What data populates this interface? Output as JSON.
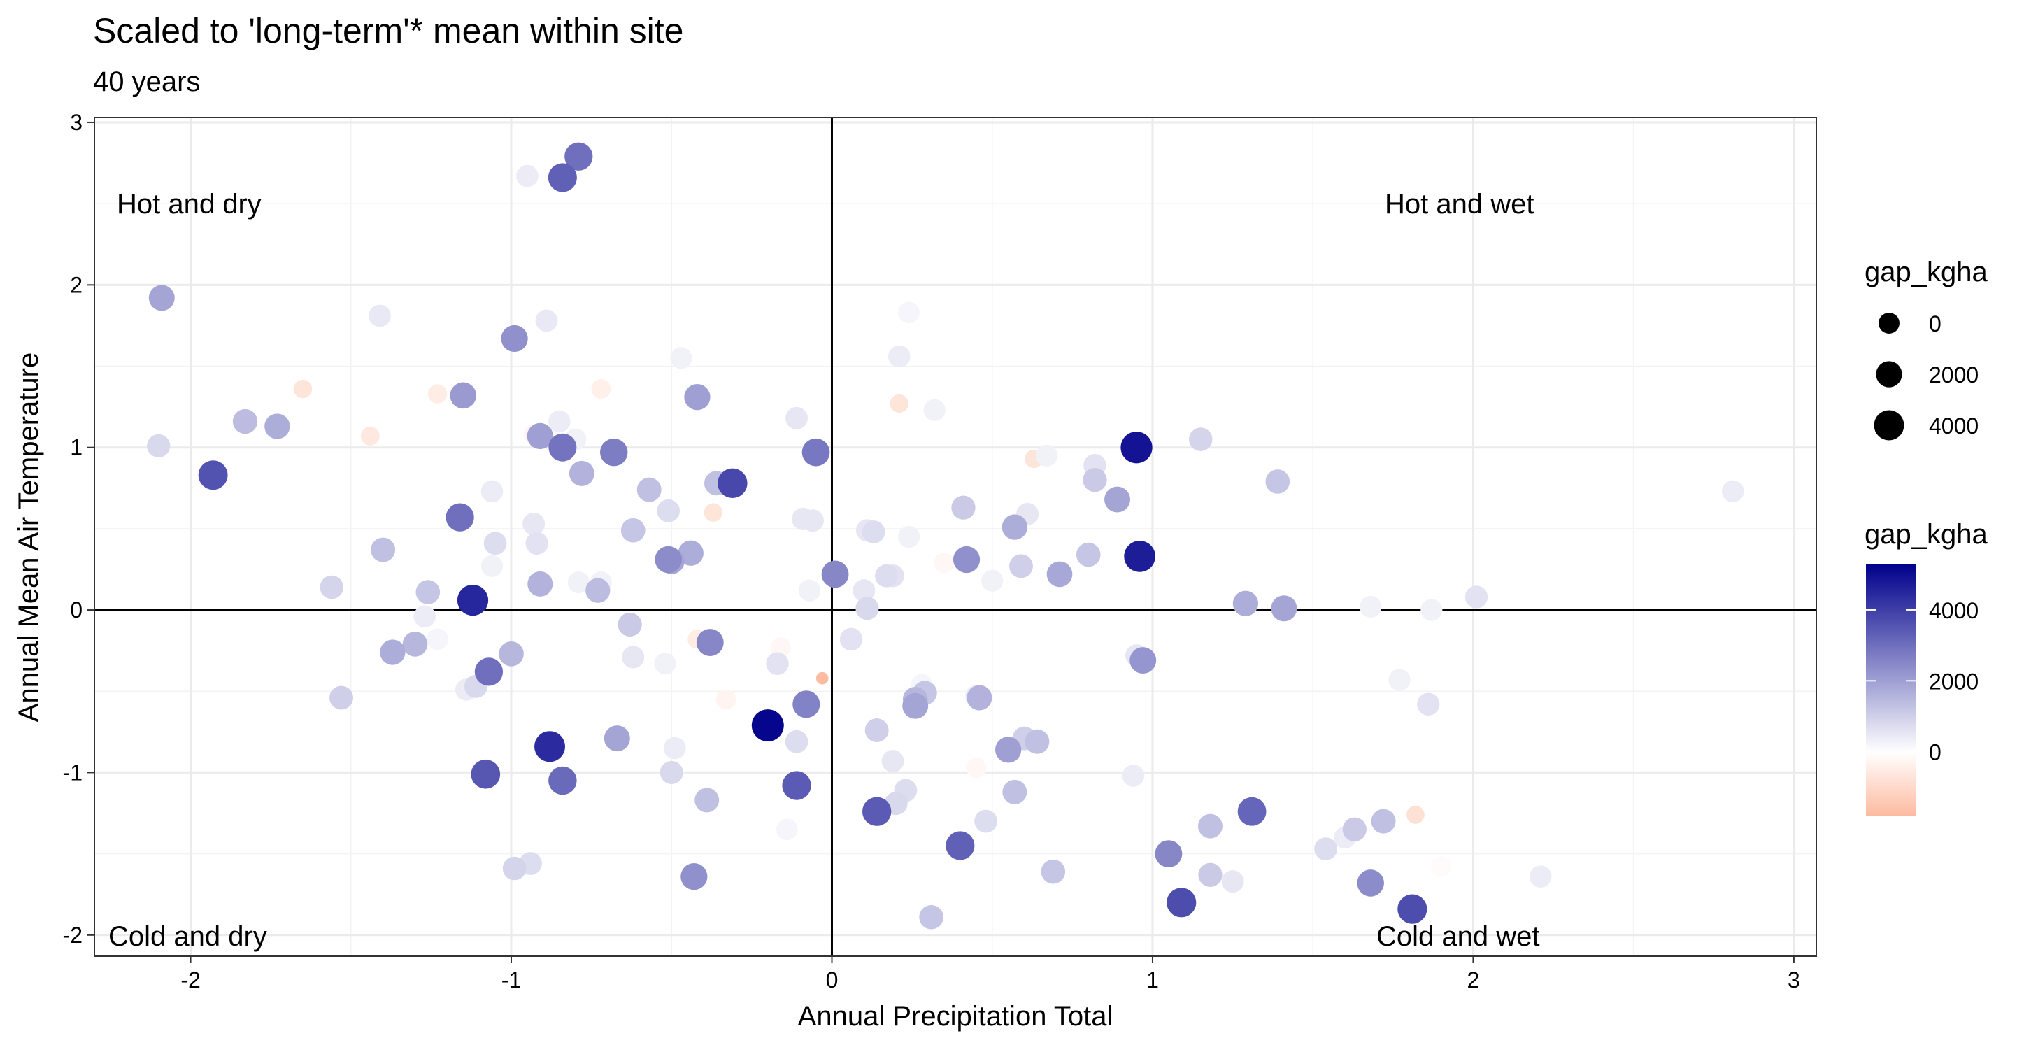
{
  "chart_data": {
    "type": "scatter",
    "title": "Scaled to 'long-term'* mean within site",
    "subtitle": "40 years",
    "xlabel": "Annual Precipitation Total",
    "ylabel": "Annual Mean Air Temperature",
    "xlim": [
      -2.3,
      3.07
    ],
    "ylim": [
      -2.13,
      3.03
    ],
    "x_ticks": [
      -2,
      -1,
      0,
      1,
      2,
      3
    ],
    "y_ticks": [
      -2,
      -1,
      0,
      1,
      2,
      3
    ],
    "x_tick_labels": [
      "-2",
      "-1",
      "0",
      "1",
      "2",
      "3"
    ],
    "y_tick_labels": [
      "-2",
      "-1",
      "0",
      "1",
      "2",
      "3"
    ],
    "grid": true,
    "reference_lines": {
      "x": 0,
      "y": 0
    },
    "quadrant_labels": {
      "top_left": "Hot and dry",
      "top_right": "Hot and wet",
      "bottom_left": "Cold and dry",
      "bottom_right": "Cold and wet"
    },
    "size_legend": {
      "title": "gap_kgha",
      "entries": [
        {
          "label": "0",
          "value": 0
        },
        {
          "label": "2000",
          "value": 2000
        },
        {
          "label": "4000",
          "value": 4000
        }
      ]
    },
    "color_legend": {
      "title": "gap_kgha",
      "range": [
        -1800,
        5300
      ],
      "tick_values": [
        0,
        2000,
        4000
      ],
      "tick_labels": [
        "0",
        "2000",
        "4000"
      ],
      "low_color": "#FDBBA1",
      "mid_color": "#FFFFFF",
      "high_color": "#00008B"
    },
    "series": [
      {
        "points": [
          {
            "x": -0.79,
            "y": 2.79,
            "gap": 3000
          },
          {
            "x": -0.84,
            "y": 2.66,
            "gap": 3300
          },
          {
            "x": -0.95,
            "y": 2.67,
            "gap": 400
          },
          {
            "x": -2.09,
            "y": 1.92,
            "gap": 1900
          },
          {
            "x": -1.41,
            "y": 1.81,
            "gap": 450
          },
          {
            "x": -0.99,
            "y": 1.67,
            "gap": 2300
          },
          {
            "x": -0.89,
            "y": 1.78,
            "gap": 450
          },
          {
            "x": -1.65,
            "y": 1.36,
            "gap": -700
          },
          {
            "x": -1.23,
            "y": 1.33,
            "gap": -500
          },
          {
            "x": -1.15,
            "y": 1.32,
            "gap": 2100
          },
          {
            "x": -0.72,
            "y": 1.36,
            "gap": -400
          },
          {
            "x": -1.83,
            "y": 1.16,
            "gap": 1400
          },
          {
            "x": -1.73,
            "y": 1.13,
            "gap": 1700
          },
          {
            "x": -1.44,
            "y": 1.07,
            "gap": -600
          },
          {
            "x": -0.93,
            "y": 1.08,
            "gap": -300
          },
          {
            "x": -0.91,
            "y": 1.07,
            "gap": 2000
          },
          {
            "x": -0.85,
            "y": 1.16,
            "gap": 400
          },
          {
            "x": -0.8,
            "y": 1.05,
            "gap": 300
          },
          {
            "x": -2.1,
            "y": 1.01,
            "gap": 800
          },
          {
            "x": -1.93,
            "y": 0.83,
            "gap": 3600
          },
          {
            "x": -0.84,
            "y": 1.0,
            "gap": 2900
          },
          {
            "x": -0.68,
            "y": 0.97,
            "gap": 2700
          },
          {
            "x": -0.78,
            "y": 0.84,
            "gap": 1600
          },
          {
            "x": -1.06,
            "y": 0.73,
            "gap": 400
          },
          {
            "x": -0.57,
            "y": 0.74,
            "gap": 1300
          },
          {
            "x": -0.51,
            "y": 0.61,
            "gap": 700
          },
          {
            "x": -0.36,
            "y": 0.78,
            "gap": 1300
          },
          {
            "x": -0.31,
            "y": 0.78,
            "gap": 3800
          },
          {
            "x": -0.37,
            "y": 0.6,
            "gap": -700
          },
          {
            "x": -1.16,
            "y": 0.57,
            "gap": 3000
          },
          {
            "x": -0.93,
            "y": 0.53,
            "gap": 500
          },
          {
            "x": -1.05,
            "y": 0.41,
            "gap": 700
          },
          {
            "x": -0.92,
            "y": 0.41,
            "gap": 600
          },
          {
            "x": -1.4,
            "y": 0.37,
            "gap": 1300
          },
          {
            "x": -1.06,
            "y": 0.27,
            "gap": 300
          },
          {
            "x": -0.62,
            "y": 0.49,
            "gap": 1200
          },
          {
            "x": -0.51,
            "y": 0.31,
            "gap": 2400
          },
          {
            "x": -0.44,
            "y": 0.35,
            "gap": 1700
          },
          {
            "x": -0.5,
            "y": 0.3,
            "gap": 1900
          },
          {
            "x": -0.47,
            "y": 1.55,
            "gap": 300
          },
          {
            "x": -0.42,
            "y": 1.31,
            "gap": 2000
          },
          {
            "x": -0.11,
            "y": 1.18,
            "gap": 500
          },
          {
            "x": -0.05,
            "y": 0.97,
            "gap": 2800
          },
          {
            "x": -0.09,
            "y": 0.56,
            "gap": 500
          },
          {
            "x": -0.06,
            "y": 0.55,
            "gap": 500
          },
          {
            "x": -1.56,
            "y": 0.14,
            "gap": 900
          },
          {
            "x": -1.26,
            "y": 0.11,
            "gap": 1200
          },
          {
            "x": -1.12,
            "y": 0.06,
            "gap": 4500
          },
          {
            "x": -0.91,
            "y": 0.16,
            "gap": 1600
          },
          {
            "x": -0.79,
            "y": 0.17,
            "gap": 300
          },
          {
            "x": -0.73,
            "y": 0.12,
            "gap": 1400
          },
          {
            "x": -0.72,
            "y": 0.17,
            "gap": 300
          },
          {
            "x": 0.01,
            "y": 0.22,
            "gap": 2500
          },
          {
            "x": -0.07,
            "y": 0.12,
            "gap": 300
          },
          {
            "x": -1.37,
            "y": -0.26,
            "gap": 1700
          },
          {
            "x": -1.3,
            "y": -0.21,
            "gap": 1500
          },
          {
            "x": -1.27,
            "y": -0.04,
            "gap": 400
          },
          {
            "x": -1.23,
            "y": -0.18,
            "gap": 200
          },
          {
            "x": -1.07,
            "y": -0.38,
            "gap": 3000
          },
          {
            "x": -1.0,
            "y": -0.27,
            "gap": 1500
          },
          {
            "x": -1.11,
            "y": -0.47,
            "gap": 800
          },
          {
            "x": -1.14,
            "y": -0.49,
            "gap": 400
          },
          {
            "x": -1.53,
            "y": -0.54,
            "gap": 1000
          },
          {
            "x": -0.63,
            "y": -0.09,
            "gap": 1100
          },
          {
            "x": -0.62,
            "y": -0.29,
            "gap": 500
          },
          {
            "x": -0.52,
            "y": -0.33,
            "gap": 300
          },
          {
            "x": -0.42,
            "y": -0.18,
            "gap": -500
          },
          {
            "x": -0.38,
            "y": -0.2,
            "gap": 2500
          },
          {
            "x": -0.16,
            "y": -0.23,
            "gap": -200
          },
          {
            "x": -0.17,
            "y": -0.33,
            "gap": 600
          },
          {
            "x": -0.03,
            "y": -0.42,
            "gap": -1800
          },
          {
            "x": -0.33,
            "y": -0.55,
            "gap": -300
          },
          {
            "x": -0.2,
            "y": -0.71,
            "gap": 5200
          },
          {
            "x": -0.08,
            "y": -0.58,
            "gap": 2600
          },
          {
            "x": -0.11,
            "y": -0.81,
            "gap": 700
          },
          {
            "x": -0.11,
            "y": -1.08,
            "gap": 3400
          },
          {
            "x": 0.06,
            "y": -0.18,
            "gap": 600
          },
          {
            "x": -0.88,
            "y": -0.84,
            "gap": 4400
          },
          {
            "x": -1.08,
            "y": -1.01,
            "gap": 3500
          },
          {
            "x": -0.84,
            "y": -1.05,
            "gap": 3100
          },
          {
            "x": -0.67,
            "y": -0.79,
            "gap": 1900
          },
          {
            "x": -0.49,
            "y": -0.85,
            "gap": 400
          },
          {
            "x": -0.5,
            "y": -1.0,
            "gap": 800
          },
          {
            "x": -0.39,
            "y": -1.17,
            "gap": 1300
          },
          {
            "x": -0.14,
            "y": -1.35,
            "gap": 200
          },
          {
            "x": -0.99,
            "y": -1.59,
            "gap": 900
          },
          {
            "x": -0.94,
            "y": -1.56,
            "gap": 700
          },
          {
            "x": -0.43,
            "y": -1.64,
            "gap": 2300
          },
          {
            "x": 0.11,
            "y": 0.49,
            "gap": 500
          },
          {
            "x": 0.13,
            "y": 0.48,
            "gap": 700
          },
          {
            "x": 0.24,
            "y": 0.45,
            "gap": 300
          },
          {
            "x": 0.32,
            "y": 1.23,
            "gap": 300
          },
          {
            "x": 0.21,
            "y": 1.56,
            "gap": 400
          },
          {
            "x": 0.24,
            "y": 1.83,
            "gap": 200
          },
          {
            "x": 0.21,
            "y": 1.27,
            "gap": -700
          },
          {
            "x": 0.1,
            "y": 0.12,
            "gap": 500
          },
          {
            "x": 0.11,
            "y": 0.01,
            "gap": 800
          },
          {
            "x": 0.17,
            "y": 0.21,
            "gap": 700
          },
          {
            "x": 0.19,
            "y": 0.21,
            "gap": 600
          },
          {
            "x": 0.35,
            "y": 0.29,
            "gap": -200
          },
          {
            "x": 0.42,
            "y": 0.31,
            "gap": 2300
          },
          {
            "x": 0.41,
            "y": 0.63,
            "gap": 1100
          },
          {
            "x": 0.5,
            "y": 0.18,
            "gap": 300
          },
          {
            "x": 0.59,
            "y": 0.27,
            "gap": 1000
          },
          {
            "x": 0.57,
            "y": 0.51,
            "gap": 1700
          },
          {
            "x": 0.61,
            "y": 0.59,
            "gap": 500
          },
          {
            "x": 0.63,
            "y": 0.93,
            "gap": -700
          },
          {
            "x": 0.67,
            "y": 0.95,
            "gap": 300
          },
          {
            "x": 0.71,
            "y": 0.22,
            "gap": 1800
          },
          {
            "x": 0.8,
            "y": 0.34,
            "gap": 1200
          },
          {
            "x": 0.82,
            "y": 0.8,
            "gap": 1100
          },
          {
            "x": 0.82,
            "y": 0.89,
            "gap": 600
          },
          {
            "x": 0.89,
            "y": 0.68,
            "gap": 1900
          },
          {
            "x": 0.95,
            "y": 1.0,
            "gap": 4900
          },
          {
            "x": 0.96,
            "y": 0.33,
            "gap": 4700
          },
          {
            "x": 1.15,
            "y": 1.05,
            "gap": 900
          },
          {
            "x": 1.39,
            "y": 0.79,
            "gap": 1200
          },
          {
            "x": 1.29,
            "y": 0.04,
            "gap": 1700
          },
          {
            "x": 1.41,
            "y": 0.01,
            "gap": 1900
          },
          {
            "x": 0.97,
            "y": -0.31,
            "gap": 2200
          },
          {
            "x": 0.95,
            "y": -0.28,
            "gap": 500
          },
          {
            "x": 1.68,
            "y": 0.02,
            "gap": 300
          },
          {
            "x": 1.87,
            "y": 0.0,
            "gap": 300
          },
          {
            "x": 2.01,
            "y": 0.08,
            "gap": 600
          },
          {
            "x": 2.81,
            "y": 0.73,
            "gap": 400
          },
          {
            "x": 0.14,
            "y": -0.74,
            "gap": 1000
          },
          {
            "x": 0.19,
            "y": -0.93,
            "gap": 500
          },
          {
            "x": 0.26,
            "y": -0.55,
            "gap": 1500
          },
          {
            "x": 0.26,
            "y": -0.59,
            "gap": 1900
          },
          {
            "x": 0.28,
            "y": -0.46,
            "gap": 200
          },
          {
            "x": 0.29,
            "y": -0.51,
            "gap": 1200
          },
          {
            "x": 0.45,
            "y": -0.53,
            "gap": 400
          },
          {
            "x": 0.46,
            "y": -0.54,
            "gap": 1600
          },
          {
            "x": 0.45,
            "y": -0.97,
            "gap": -200
          },
          {
            "x": 0.55,
            "y": -0.86,
            "gap": 2000
          },
          {
            "x": 0.6,
            "y": -0.79,
            "gap": 1000
          },
          {
            "x": 0.64,
            "y": -0.81,
            "gap": 1300
          },
          {
            "x": 0.57,
            "y": -1.12,
            "gap": 1300
          },
          {
            "x": 0.23,
            "y": -1.11,
            "gap": 700
          },
          {
            "x": 0.2,
            "y": -1.19,
            "gap": 800
          },
          {
            "x": 0.14,
            "y": -1.24,
            "gap": 3400
          },
          {
            "x": 0.48,
            "y": -1.3,
            "gap": 700
          },
          {
            "x": 0.4,
            "y": -1.45,
            "gap": 3300
          },
          {
            "x": 0.69,
            "y": -1.61,
            "gap": 1200
          },
          {
            "x": 0.31,
            "y": -1.89,
            "gap": 1200
          },
          {
            "x": 0.94,
            "y": -1.02,
            "gap": 400
          },
          {
            "x": 1.05,
            "y": -1.5,
            "gap": 2500
          },
          {
            "x": 1.09,
            "y": -1.8,
            "gap": 3700
          },
          {
            "x": 1.18,
            "y": -1.33,
            "gap": 1300
          },
          {
            "x": 1.18,
            "y": -1.63,
            "gap": 1100
          },
          {
            "x": 1.25,
            "y": -1.67,
            "gap": 500
          },
          {
            "x": 1.31,
            "y": -1.24,
            "gap": 3200
          },
          {
            "x": 1.54,
            "y": -1.47,
            "gap": 700
          },
          {
            "x": 1.6,
            "y": -1.4,
            "gap": 400
          },
          {
            "x": 1.63,
            "y": -1.35,
            "gap": 1100
          },
          {
            "x": 1.68,
            "y": -1.68,
            "gap": 2400
          },
          {
            "x": 1.72,
            "y": -1.3,
            "gap": 1300
          },
          {
            "x": 1.81,
            "y": -1.84,
            "gap": 3700
          },
          {
            "x": 1.77,
            "y": -0.43,
            "gap": 300
          },
          {
            "x": 1.86,
            "y": -0.58,
            "gap": 600
          },
          {
            "x": 1.82,
            "y": -1.26,
            "gap": -800
          },
          {
            "x": 1.9,
            "y": -1.58,
            "gap": -100
          },
          {
            "x": 2.21,
            "y": -1.64,
            "gap": 400
          }
        ]
      }
    ]
  }
}
